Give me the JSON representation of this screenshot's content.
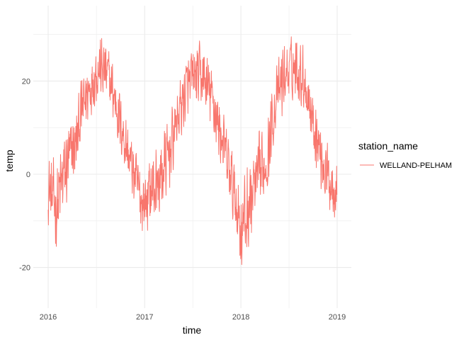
{
  "chart_data": {
    "type": "line",
    "xlabel": "time",
    "ylabel": "temp",
    "x_tick_labels": [
      "2016",
      "2017",
      "2018",
      "2019"
    ],
    "y_tick_labels": [
      "-20",
      "0",
      "20"
    ],
    "xlim": [
      "2016-01-01",
      "2019-01-01"
    ],
    "ylim": [
      -28,
      34
    ],
    "grid": true,
    "legend": {
      "title": "station_name",
      "position": "right",
      "entries": [
        "WELLAND-PELHAM"
      ]
    },
    "series": [
      {
        "name": "WELLAND-PELHAM",
        "color": "#F8766D",
        "x": [
          "2016-01-01",
          "2016-01-15",
          "2016-02-01",
          "2016-02-15",
          "2016-03-01",
          "2016-03-15",
          "2016-04-01",
          "2016-04-15",
          "2016-05-01",
          "2016-05-15",
          "2016-06-01",
          "2016-06-15",
          "2016-07-01",
          "2016-07-15",
          "2016-08-01",
          "2016-08-15",
          "2016-09-01",
          "2016-09-15",
          "2016-10-01",
          "2016-10-15",
          "2016-11-01",
          "2016-11-15",
          "2016-12-01",
          "2016-12-15",
          "2017-01-01",
          "2017-01-15",
          "2017-02-01",
          "2017-02-15",
          "2017-03-01",
          "2017-03-15",
          "2017-04-01",
          "2017-04-15",
          "2017-05-01",
          "2017-05-15",
          "2017-06-01",
          "2017-06-15",
          "2017-07-01",
          "2017-07-15",
          "2017-08-01",
          "2017-08-15",
          "2017-09-01",
          "2017-09-15",
          "2017-10-01",
          "2017-10-15",
          "2017-11-01",
          "2017-11-15",
          "2017-12-01",
          "2017-12-15",
          "2018-01-01",
          "2018-01-15",
          "2018-02-01",
          "2018-02-15",
          "2018-03-01",
          "2018-03-15",
          "2018-04-01",
          "2018-04-15",
          "2018-05-01",
          "2018-05-15",
          "2018-06-01",
          "2018-06-15",
          "2018-07-01",
          "2018-07-15",
          "2018-08-01",
          "2018-08-15",
          "2018-09-01",
          "2018-09-15",
          "2018-10-01",
          "2018-10-15",
          "2018-11-01",
          "2018-11-15",
          "2018-12-01",
          "2018-12-15",
          "2018-12-31"
        ],
        "y_mean": [
          -2,
          -5,
          -7,
          -4,
          0,
          2,
          5,
          6,
          12,
          15,
          18,
          20,
          22,
          23,
          22,
          21,
          18,
          15,
          11,
          8,
          4,
          1,
          -2,
          -5,
          -6,
          -4,
          -3,
          -2,
          -1,
          1,
          4,
          7,
          11,
          14,
          17,
          19,
          20,
          21,
          21,
          20,
          18,
          16,
          12,
          9,
          5,
          1,
          -3,
          -6,
          -11,
          -10,
          -7,
          -4,
          -2,
          0,
          2,
          5,
          12,
          16,
          19,
          21,
          22,
          23,
          23,
          22,
          20,
          16,
          12,
          8,
          4,
          1,
          -1,
          -2,
          -2
        ],
        "amplitude": [
          9,
          9,
          11,
          12,
          11,
          10,
          9,
          9,
          8,
          8,
          8,
          8,
          8,
          8,
          8,
          8,
          8,
          8,
          8,
          8,
          8,
          8,
          8,
          9,
          9,
          9,
          10,
          10,
          10,
          10,
          9,
          9,
          8,
          8,
          8,
          8,
          8,
          8,
          8,
          8,
          8,
          8,
          8,
          8,
          8,
          9,
          9,
          10,
          12,
          12,
          11,
          11,
          10,
          10,
          9,
          9,
          8,
          8,
          8,
          8,
          8,
          8,
          8,
          8,
          8,
          8,
          8,
          8,
          8,
          8,
          8,
          8,
          8
        ],
        "observed_min": -26,
        "observed_max": 33
      }
    ]
  }
}
